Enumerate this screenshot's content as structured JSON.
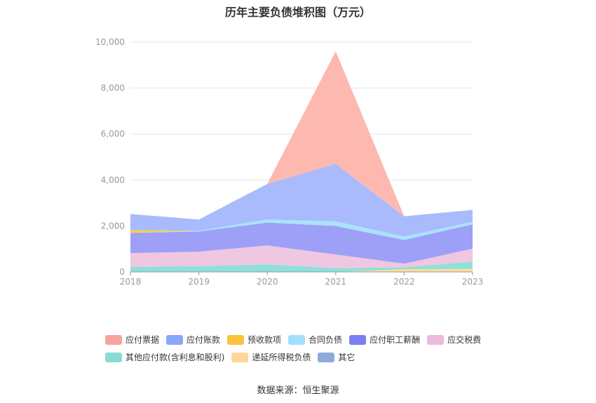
{
  "title": "历年主要负债堆积图（万元）",
  "source": "数据来源：恒生聚源",
  "colors": {
    "accent_text": "#333333",
    "axis_text": "#999999",
    "grid": "#e6e6e6"
  },
  "chart_data": {
    "type": "area",
    "stacked": true,
    "title": "历年主要负债堆积图（万元）",
    "xlabel": "",
    "ylabel": "",
    "categories": [
      "2018",
      "2019",
      "2020",
      "2021",
      "2022",
      "2023"
    ],
    "ylim": [
      0,
      10000
    ],
    "yticks": [
      0,
      2000,
      4000,
      6000,
      8000,
      10000
    ],
    "ytick_labels": [
      "0",
      "2,000",
      "4,000",
      "6,000",
      "8,000",
      "10,000"
    ],
    "grid": true,
    "legend_position": "bottom",
    "series": [
      {
        "name": "递延所得税负债",
        "color": "#ffdc9a",
        "values": [
          0,
          0,
          0,
          0,
          120,
          130
        ]
      },
      {
        "name": "其他应付款(含利息和股利)",
        "color": "#8fe0da",
        "values": [
          230,
          250,
          330,
          170,
          80,
          320
        ]
      },
      {
        "name": "应交税费",
        "color": "#efc7e0",
        "values": [
          590,
          630,
          820,
          590,
          160,
          560
        ]
      },
      {
        "name": "应付职工薪酬",
        "color": "#9ea0f8",
        "values": [
          880,
          880,
          1000,
          1240,
          1030,
          1060
        ]
      },
      {
        "name": "合同负债",
        "color": "#a8e3fb",
        "values": [
          0,
          30,
          130,
          200,
          150,
          110
        ]
      },
      {
        "name": "预收款项",
        "color": "#fbcb4b",
        "values": [
          120,
          0,
          0,
          0,
          0,
          0
        ]
      },
      {
        "name": "应付账款",
        "color": "#a9bbfc",
        "values": [
          700,
          490,
          1550,
          2500,
          880,
          520
        ]
      },
      {
        "name": "应付票据",
        "color": "#fdb8b0",
        "values": [
          0,
          0,
          0,
          4900,
          0,
          0
        ]
      },
      {
        "name": "其它",
        "color": "#94acd9",
        "values": [
          0,
          0,
          0,
          0,
          0,
          0
        ]
      }
    ]
  },
  "legend": {
    "rows": [
      [
        {
          "label": "应付票据",
          "color": "#f7a59b"
        },
        {
          "label": "应付账款",
          "color": "#8ba7fb"
        },
        {
          "label": "预收款项",
          "color": "#fbc33c"
        },
        {
          "label": "合同负债",
          "color": "#a3dffb"
        },
        {
          "label": "应付职工薪酬",
          "color": "#7b7ff4"
        },
        {
          "label": "应交税费",
          "color": "#ecbada"
        }
      ],
      [
        {
          "label": "其他应付款(含利息和股利)",
          "color": "#89dcd6"
        },
        {
          "label": "递延所得税负债",
          "color": "#fdd79a"
        },
        {
          "label": "其它",
          "color": "#8fa9d8"
        }
      ]
    ]
  }
}
